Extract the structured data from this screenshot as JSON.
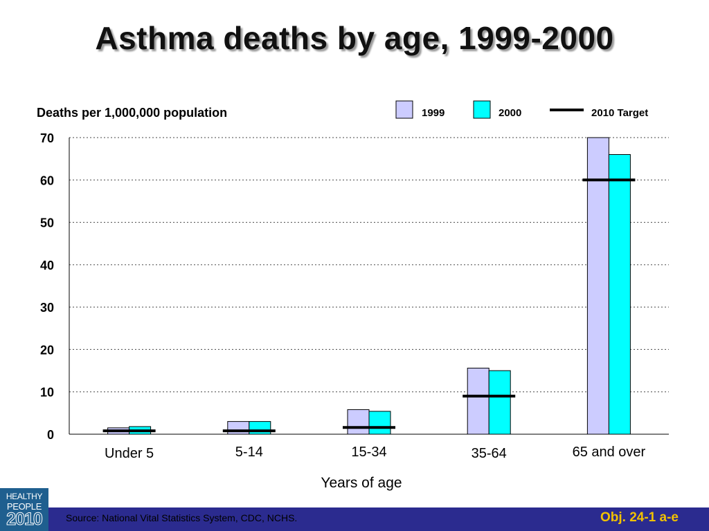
{
  "title": "Asthma deaths by age, 1999-2000",
  "footer": {
    "source": "Source: National Vital Statistics System, CDC, NCHS.",
    "objective": "Obj. 24-1 a-e"
  },
  "logo": {
    "line1": "HEALTHY",
    "line2": "PEOPLE",
    "line3": "2010"
  },
  "colors": {
    "bar_1999": "#ccccff",
    "bar_2000": "#00ffff",
    "target": "#000000",
    "footer_bar": "#2b2b8f",
    "objective_text": "#f2c200"
  },
  "chart_data": {
    "type": "bar",
    "ylabel": "Deaths per 1,000,000 population",
    "xlabel": "Years of age",
    "ylim": [
      0,
      70
    ],
    "yticks": [
      0,
      10,
      20,
      30,
      40,
      50,
      60,
      70
    ],
    "grid": true,
    "legend_position": "top-right",
    "categories": [
      "Under 5",
      "5-14",
      "15-34",
      "35-64",
      "65 and over"
    ],
    "series": [
      {
        "name": "1999",
        "values": [
          1.5,
          3.0,
          5.8,
          15.6,
          70.0
        ]
      },
      {
        "name": "2000",
        "values": [
          1.8,
          3.0,
          5.4,
          15.0,
          66.0
        ]
      }
    ],
    "target": {
      "name": "2010 Target",
      "values": [
        0.8,
        0.8,
        1.6,
        9.0,
        60.0
      ]
    }
  }
}
